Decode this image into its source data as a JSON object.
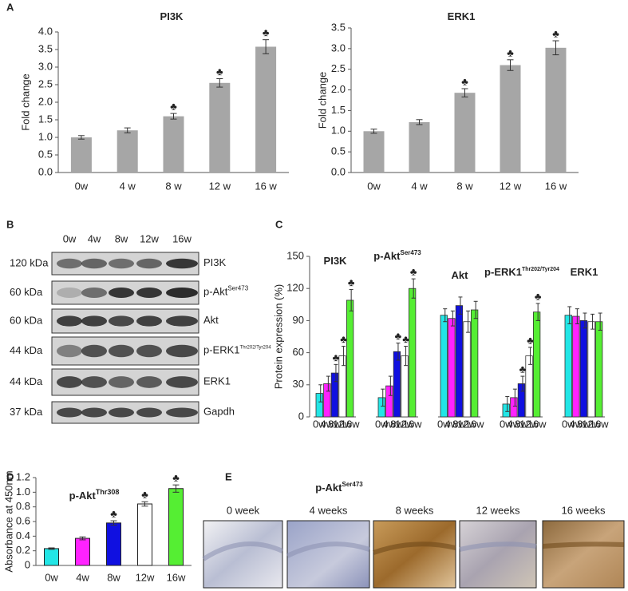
{
  "panel_labels": [
    "A",
    "B",
    "C",
    "D",
    "E"
  ],
  "chart_data": [
    {
      "type": "bar",
      "title": "PI3K",
      "y_label": "Fold change",
      "categories": [
        "0w",
        "4 w",
        "8 w",
        "12 w",
        "16 w"
      ],
      "values": [
        1.0,
        1.2,
        1.6,
        2.55,
        3.58
      ],
      "errors": [
        0.05,
        0.07,
        0.08,
        0.12,
        0.2
      ],
      "markers": [
        null,
        null,
        "♣",
        "♣",
        "♣"
      ],
      "color": "#a6a6a6",
      "ylim": [
        0,
        4
      ],
      "yticks": [
        {
          "value": 0,
          "label": "0.0"
        },
        0.5,
        {
          "value": 1,
          "label": "1.0"
        },
        1.5,
        {
          "value": 2,
          "label": "2.0"
        },
        2.5,
        {
          "value": 3,
          "label": "3.0"
        },
        3.5,
        {
          "value": 4,
          "label": "4.0"
        }
      ]
    },
    {
      "type": "bar",
      "title": "ERK1",
      "y_label": "Fold change",
      "categories": [
        "0w",
        "4 w",
        "8 w",
        "12 w",
        "16 w"
      ],
      "values": [
        1.0,
        1.22,
        1.93,
        2.6,
        3.02
      ],
      "errors": [
        0.05,
        0.06,
        0.1,
        0.13,
        0.17
      ],
      "markers": [
        null,
        null,
        "♣",
        "♣",
        "♣"
      ],
      "color": "#a6a6a6",
      "ylim": [
        0,
        3.5
      ],
      "yticks": [
        {
          "value": 0,
          "label": "0.0"
        },
        0.5,
        {
          "value": 1,
          "label": "1.0"
        },
        1.5,
        {
          "value": 2,
          "label": "2.0"
        },
        2.5,
        {
          "value": 3,
          "label": "3.0"
        },
        3.5
      ]
    },
    {
      "type": "grouped_bar",
      "y_label": "Protein expression (%)",
      "categories": [
        "PI3K",
        "p-Akt",
        "Akt",
        "p-ERK1",
        "ERK1"
      ],
      "category_superscripts": [
        null,
        "Ser473",
        null,
        "Thr202/Tyr204",
        null
      ],
      "series": [
        {
          "name": "0w",
          "color": "#22e6e6",
          "values": [
            22,
            18,
            95,
            12,
            95
          ],
          "errors": [
            8,
            8,
            6,
            7,
            8
          ],
          "markers": [
            null,
            null,
            null,
            null,
            null
          ]
        },
        {
          "name": "4w",
          "color": "#ff22ff",
          "values": [
            31,
            29,
            92,
            18,
            94
          ],
          "errors": [
            7,
            9,
            7,
            8,
            7
          ],
          "markers": [
            null,
            null,
            null,
            null,
            null
          ]
        },
        {
          "name": "8w",
          "color": "#1010e0",
          "values": [
            41,
            61,
            104,
            31,
            90
          ],
          "errors": [
            8,
            8,
            8,
            7,
            7
          ],
          "markers": [
            "♣",
            "♣",
            null,
            "♣",
            null
          ]
        },
        {
          "name": "12w",
          "color": "#ffffff",
          "values": [
            57,
            57,
            89,
            57,
            89
          ],
          "errors": [
            9,
            9,
            10,
            8,
            7
          ],
          "markers": [
            "♣",
            "♣",
            null,
            "♣",
            null
          ]
        },
        {
          "name": "16w",
          "color": "#55ee33",
          "values": [
            109,
            120,
            100,
            98,
            89
          ],
          "errors": [
            10,
            9,
            8,
            8,
            8
          ],
          "markers": [
            "♣",
            "♣",
            null,
            "♣",
            null
          ]
        }
      ],
      "ylim": [
        0,
        150
      ],
      "yticks": [
        0,
        30,
        60,
        90,
        120,
        150
      ]
    },
    {
      "type": "bar",
      "title": "p-Akt",
      "title_superscript": "Thr308",
      "y_label": "Absorbance at 450nm",
      "categories": [
        "0w",
        "4w",
        "8w",
        "12w",
        "16w"
      ],
      "values": [
        0.23,
        0.37,
        0.58,
        0.84,
        1.05
      ],
      "errors": [
        0.01,
        0.02,
        0.03,
        0.03,
        0.05
      ],
      "markers": [
        null,
        null,
        "♣",
        "♣",
        "♣"
      ],
      "colors": [
        "#22e6e6",
        "#ff22ff",
        "#1010e0",
        "#ffffff",
        "#55ee33"
      ],
      "ylim": [
        0,
        1.2
      ],
      "yticks": [
        0,
        0.2,
        0.4,
        0.6,
        0.8,
        {
          "value": 1,
          "label": "1.0"
        },
        1.2
      ]
    }
  ],
  "blot": {
    "columns": [
      "0w",
      "4w",
      "8w",
      "12w",
      "16w"
    ],
    "rows": [
      {
        "kda": "120 kDa",
        "protein": "PI3K",
        "superscript": null
      },
      {
        "kda": "60 kDa",
        "protein": "p-Akt",
        "superscript": "Ser473"
      },
      {
        "kda": "60 kDa",
        "protein": "Akt",
        "superscript": null
      },
      {
        "kda": "44 kDa",
        "protein": "p-ERK1",
        "superscript": "Thr202/Tyr204"
      },
      {
        "kda": "44 kDa",
        "protein": "ERK1",
        "superscript": null
      },
      {
        "kda": "37 kDa",
        "protein": "Gapdh",
        "superscript": null
      }
    ]
  },
  "histology": {
    "title": "p-Akt",
    "title_superscript": "Ser473",
    "labels": [
      "0 week",
      "4 weeks",
      "8 weeks",
      "12 weeks",
      "16 weeks"
    ]
  }
}
